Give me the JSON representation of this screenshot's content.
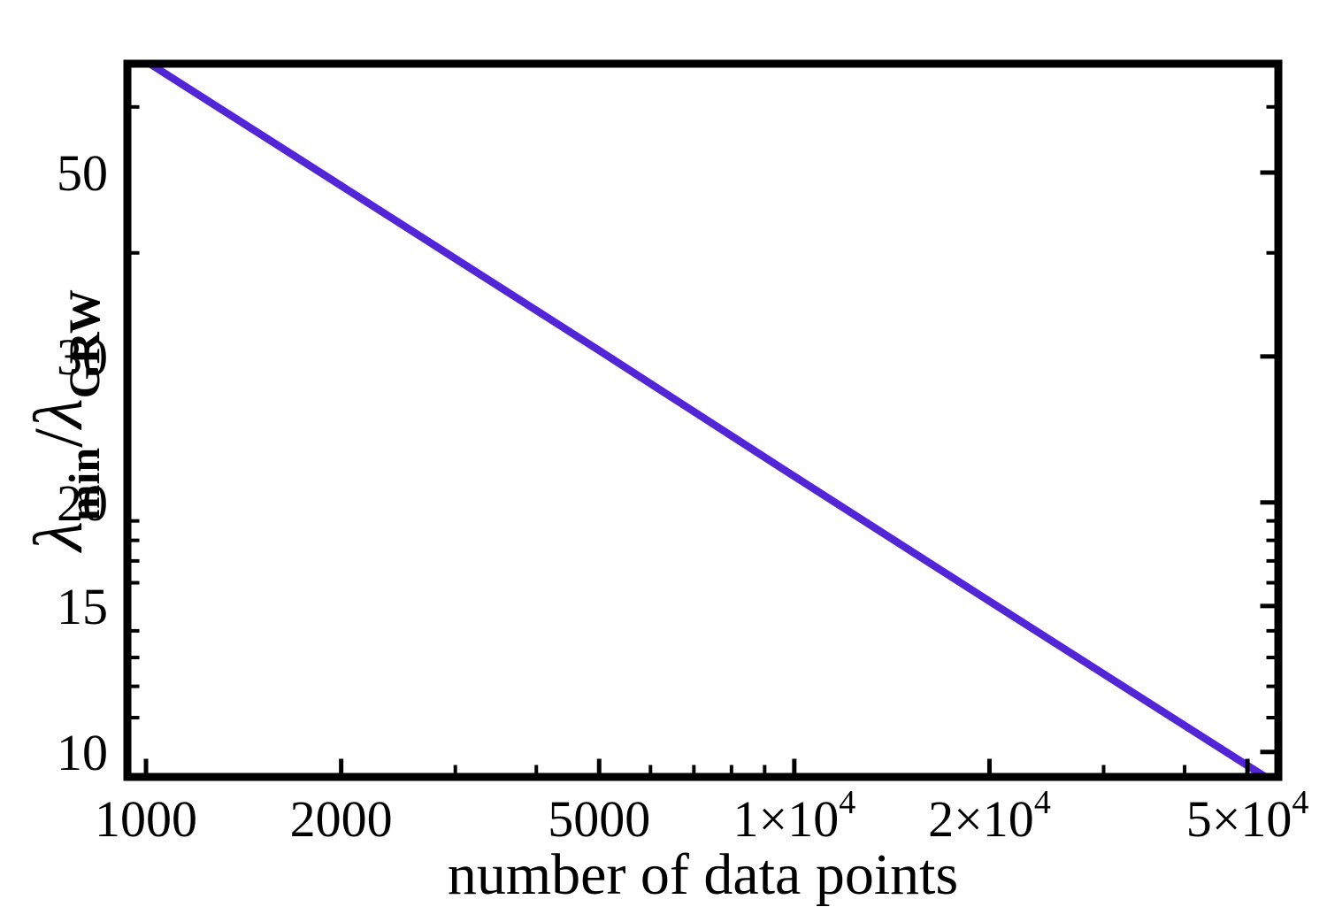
{
  "figure": {
    "background": "#ffffff",
    "frame_color": "#000000",
    "text_color": "#000000"
  },
  "chart_data": {
    "type": "line",
    "x_scale": "log",
    "y_scale": "log",
    "title": "",
    "xlabel": "number of data points",
    "ylabel": "λmin/λGRW",
    "ylabel_parts": [
      {
        "text": "λ",
        "italic": true,
        "sub": false
      },
      {
        "text": "min",
        "italic": false,
        "sub": true
      },
      {
        "text": "/",
        "italic": false,
        "sub": false
      },
      {
        "text": "λ",
        "italic": true,
        "sub": false
      },
      {
        "text": "GRW",
        "italic": false,
        "sub": true
      }
    ],
    "xlim": [
      936,
      55800
    ],
    "ylim": [
      9.33,
      67.65
    ],
    "grid": false,
    "legend": false,
    "frame": true,
    "x_major_ticks": [
      {
        "value": 1000,
        "label": "1000",
        "exp": ""
      },
      {
        "value": 2000,
        "label": "2000",
        "exp": ""
      },
      {
        "value": 5000,
        "label": "5000",
        "exp": ""
      },
      {
        "value": 10000,
        "label": "1×10",
        "exp": "4"
      },
      {
        "value": 20000,
        "label": "2×10",
        "exp": "4"
      },
      {
        "value": 50000,
        "label": "5×10",
        "exp": "4"
      }
    ],
    "x_minor_ticks": [
      3000,
      4000,
      6000,
      7000,
      8000,
      9000,
      30000,
      40000
    ],
    "y_major_ticks": [
      {
        "value": 10,
        "label": "10"
      },
      {
        "value": 15,
        "label": "15"
      },
      {
        "value": 20,
        "label": "20"
      },
      {
        "value": 30,
        "label": "30"
      },
      {
        "value": 50,
        "label": "50"
      }
    ],
    "y_minor_ticks": [
      11,
      12,
      13,
      14,
      16,
      17,
      18,
      19,
      40,
      60
    ],
    "series": [
      {
        "name": "lambda_min over lambda_GRW",
        "color": "#5226d6",
        "points": [
          [
            936,
            70.4
          ],
          [
            1000,
            68.1
          ],
          [
            2000,
            48.2
          ],
          [
            5000,
            30.5
          ],
          [
            10000,
            21.5
          ],
          [
            20000,
            15.2
          ],
          [
            50000,
            9.63
          ],
          [
            55800,
            9.12
          ]
        ]
      }
    ]
  }
}
